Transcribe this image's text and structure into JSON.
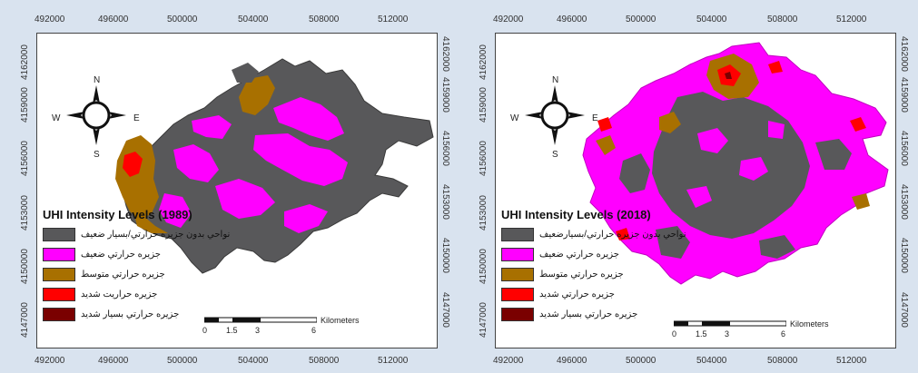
{
  "x_ticks": [
    "492000",
    "496000",
    "500000",
    "504000",
    "508000",
    "512000"
  ],
  "y_ticks": [
    "4147000",
    "4150000",
    "4153000",
    "4156000",
    "4159000",
    "4162000"
  ],
  "compass": {
    "n": "N",
    "s": "S",
    "e": "E",
    "w": "W"
  },
  "scalebar": {
    "marks": [
      "0",
      "1.5",
      "3",
      "6"
    ],
    "unit": "Kilometers"
  },
  "colors": {
    "none_weak": "#58585a",
    "weak": "#ff00ff",
    "moderate": "#a87000",
    "strong": "#ff0000",
    "very_strong": "#7a0000"
  },
  "maps": [
    {
      "title": "UHI Intensity Levels  (1989)",
      "legend": [
        "نواحي بدون جزيره حرارتي/بسيار ضعيف",
        "جزيره حرارتي ضعيف",
        "جزيره حرارتي متوسط",
        "جزيره حراريت شديد",
        "جزيره حرارتي بسيار شديد"
      ]
    },
    {
      "title": "UHI Intensity Levels (2018)",
      "legend": [
        "نواحي بدون جزيره حرارتي/بسيارضعيف",
        "جزيره حرارتي ضعيف",
        "جزيره حرارتي متوسط",
        "جزيره حرارتي شديد",
        "جزيره حرارتي بسيار شديد"
      ]
    }
  ]
}
